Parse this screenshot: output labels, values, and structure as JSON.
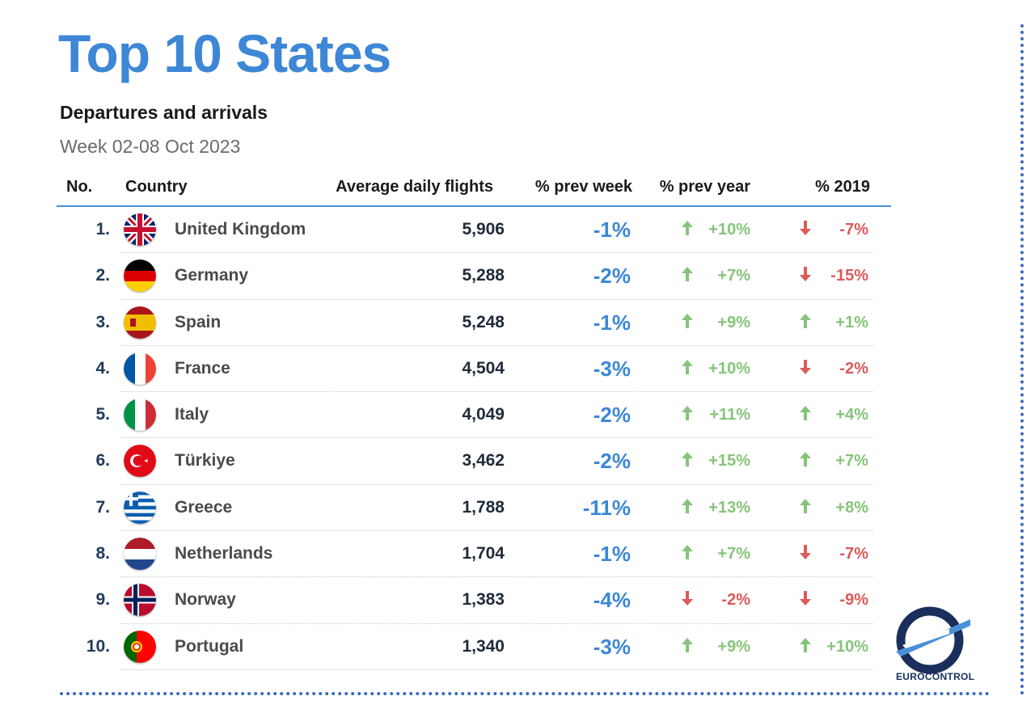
{
  "header": {
    "title": "Top 10 States",
    "subtitle": "Departures and arrivals",
    "week": "Week 02-08 Oct 2023"
  },
  "colors": {
    "title": "#3d87d6",
    "positive": "#86c47a",
    "negative": "#dc5a5a",
    "accent": "#3a6cc0"
  },
  "columns": {
    "no": "No.",
    "country": "Country",
    "avg": "Average daily flights",
    "prev_week": "% prev week",
    "prev_year": "% prev year",
    "y2019": "% 2019"
  },
  "rows": [
    {
      "no": "1.",
      "country": "United Kingdom",
      "flag": "uk-flag-icon",
      "avg": "5,906",
      "prev_week": "-1%",
      "prev_year": "+10%",
      "prev_year_dir": "up",
      "y2019": "-7%",
      "y2019_dir": "down"
    },
    {
      "no": "2.",
      "country": "Germany",
      "flag": "germany-flag-icon",
      "avg": "5,288",
      "prev_week": "-2%",
      "prev_year": "+7%",
      "prev_year_dir": "up",
      "y2019": "-15%",
      "y2019_dir": "down"
    },
    {
      "no": "3.",
      "country": "Spain",
      "flag": "spain-flag-icon",
      "avg": "5,248",
      "prev_week": "-1%",
      "prev_year": "+9%",
      "prev_year_dir": "up",
      "y2019": "+1%",
      "y2019_dir": "up"
    },
    {
      "no": "4.",
      "country": "France",
      "flag": "france-flag-icon",
      "avg": "4,504",
      "prev_week": "-3%",
      "prev_year": "+10%",
      "prev_year_dir": "up",
      "y2019": "-2%",
      "y2019_dir": "down"
    },
    {
      "no": "5.",
      "country": "Italy",
      "flag": "italy-flag-icon",
      "avg": "4,049",
      "prev_week": "-2%",
      "prev_year": "+11%",
      "prev_year_dir": "up",
      "y2019": "+4%",
      "y2019_dir": "up"
    },
    {
      "no": "6.",
      "country": "Türkiye",
      "flag": "turkiye-flag-icon",
      "avg": "3,462",
      "prev_week": "-2%",
      "prev_year": "+15%",
      "prev_year_dir": "up",
      "y2019": "+7%",
      "y2019_dir": "up"
    },
    {
      "no": "7.",
      "country": "Greece",
      "flag": "greece-flag-icon",
      "avg": "1,788",
      "prev_week": "-11%",
      "prev_year": "+13%",
      "prev_year_dir": "up",
      "y2019": "+8%",
      "y2019_dir": "up"
    },
    {
      "no": "8.",
      "country": "Netherlands",
      "flag": "netherlands-flag-icon",
      "avg": "1,704",
      "prev_week": "-1%",
      "prev_year": "+7%",
      "prev_year_dir": "up",
      "y2019": "-7%",
      "y2019_dir": "down"
    },
    {
      "no": "9.",
      "country": "Norway",
      "flag": "norway-flag-icon",
      "avg": "1,383",
      "prev_week": "-4%",
      "prev_year": "-2%",
      "prev_year_dir": "down",
      "y2019": "-9%",
      "y2019_dir": "down"
    },
    {
      "no": "10.",
      "country": "Portugal",
      "flag": "portugal-flag-icon",
      "avg": "1,340",
      "prev_week": "-3%",
      "prev_year": "+9%",
      "prev_year_dir": "up",
      "y2019": "+10%",
      "y2019_dir": "up"
    }
  ],
  "logo": {
    "text": "EUROCONTROL",
    "icon": "eurocontrol-logo-icon"
  }
}
